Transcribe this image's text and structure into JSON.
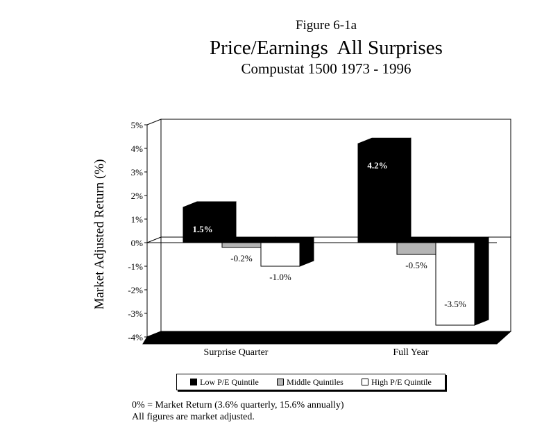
{
  "header": {
    "figure_label": "Figure 6-1a",
    "title": "Price/Earnings  All Surprises",
    "subtitle": "Compustat 1500 1973 - 1996"
  },
  "chart_data": {
    "type": "bar",
    "ylabel": "Market Adjusted Return (%)",
    "xlabel": "",
    "ylim": [
      -4,
      5
    ],
    "y_tick_values": [
      5,
      4,
      3,
      2,
      1,
      0,
      -1,
      -2,
      -3,
      -4
    ],
    "y_tick_labels": [
      "5%",
      "4%",
      "3%",
      "2%",
      "1%",
      "0%",
      "-1%",
      "-2%",
      "-3%",
      "-4%"
    ],
    "categories": [
      "Surprise Quarter",
      "Full Year"
    ],
    "series": [
      {
        "name": "Low P/E Quintile",
        "values": [
          1.5,
          4.2
        ],
        "labels": [
          "1.5%",
          "4.2%"
        ],
        "color": "#000000"
      },
      {
        "name": "Middle Quintiles",
        "values": [
          -0.2,
          -0.5
        ],
        "labels": [
          "-0.2%",
          "-0.5%"
        ],
        "color": "#b5b5b5"
      },
      {
        "name": "High P/E Quintile",
        "values": [
          -1.0,
          -3.5
        ],
        "labels": [
          "-1.0%",
          "-3.5%"
        ],
        "color": "#ffffff"
      }
    ],
    "grid": false,
    "legend_position": "bottom",
    "style": "3d"
  },
  "footnote": {
    "line1": "0% = Market Return (3.6% quarterly, 15.6% annually)",
    "line2": "All figures are market adjusted."
  }
}
